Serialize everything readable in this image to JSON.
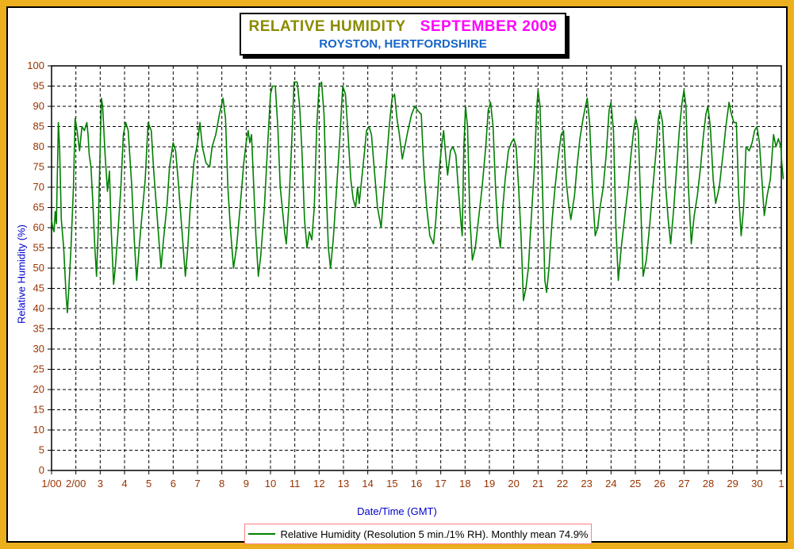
{
  "title": {
    "main": "RELATIVE HUMIDITY",
    "period": "SEPTEMBER 2009",
    "location": "ROYSTON, HERTFORDSHIRE"
  },
  "axes": {
    "x_label": "Date/Time (GMT)",
    "y_label": "Relative Humidity (%)"
  },
  "legend": {
    "text": "Relative Humidity (Resolution 5 min./1% RH). Monthly mean 74.9%"
  },
  "colors": {
    "frame_gold": "#ECAF1E",
    "line_green": "#008000",
    "tick_label_brown": "#993300",
    "axis_title_blue": "#0000CC",
    "title_olive": "#8B8B00",
    "title_magenta": "#FF00FF",
    "location_blue": "#1565C8",
    "legend_border_pink": "#FF8080",
    "grid_black": "#000000"
  },
  "chart_data": {
    "type": "line",
    "title": "RELATIVE HUMIDITY SEPTEMBER 2009 — ROYSTON, HERTFORDSHIRE",
    "xlabel": "Date/Time (GMT)",
    "ylabel": "Relative Humidity (%)",
    "ylim": [
      0,
      100
    ],
    "xlim": [
      1,
      31.1
    ],
    "y_ticks": [
      0,
      5,
      10,
      15,
      20,
      25,
      30,
      35,
      40,
      45,
      50,
      55,
      60,
      65,
      70,
      75,
      80,
      85,
      90,
      95,
      100
    ],
    "x_tick_positions": [
      1,
      2,
      3,
      4,
      5,
      6,
      7,
      8,
      9,
      10,
      11,
      12,
      13,
      14,
      15,
      16,
      17,
      18,
      19,
      20,
      21,
      22,
      23,
      24,
      25,
      26,
      27,
      28,
      29,
      30,
      31
    ],
    "x_tick_labels": [
      "1/00",
      "2/00",
      "3",
      "4",
      "5",
      "6",
      "7",
      "8",
      "9",
      "10",
      "11",
      "12",
      "13",
      "14",
      "15",
      "16",
      "17",
      "18",
      "19",
      "20",
      "21",
      "22",
      "23",
      "24",
      "25",
      "26",
      "27",
      "28",
      "29",
      "30",
      "1"
    ],
    "grid": true,
    "legend_position": "bottom",
    "monthly_mean": 74.9,
    "resolution": "5 min./1% RH",
    "series": [
      {
        "name": "Relative Humidity",
        "color": "#008000",
        "points": [
          [
            1.0,
            62
          ],
          [
            1.05,
            60
          ],
          [
            1.1,
            59
          ],
          [
            1.15,
            64
          ],
          [
            1.2,
            61
          ],
          [
            1.28,
            86
          ],
          [
            1.33,
            80
          ],
          [
            1.4,
            62
          ],
          [
            1.5,
            55
          ],
          [
            1.6,
            43
          ],
          [
            1.65,
            39
          ],
          [
            1.7,
            44
          ],
          [
            1.8,
            55
          ],
          [
            1.9,
            70
          ],
          [
            1.97,
            87
          ],
          [
            2.05,
            84
          ],
          [
            2.15,
            79
          ],
          [
            2.25,
            85
          ],
          [
            2.35,
            84
          ],
          [
            2.45,
            86
          ],
          [
            2.5,
            83
          ],
          [
            2.55,
            78
          ],
          [
            2.62,
            75
          ],
          [
            2.7,
            66
          ],
          [
            2.78,
            55
          ],
          [
            2.85,
            48
          ],
          [
            2.92,
            60
          ],
          [
            3.0,
            80
          ],
          [
            3.05,
            92
          ],
          [
            3.1,
            90
          ],
          [
            3.2,
            78
          ],
          [
            3.3,
            69
          ],
          [
            3.38,
            74
          ],
          [
            3.45,
            60
          ],
          [
            3.55,
            46
          ],
          [
            3.62,
            50
          ],
          [
            3.72,
            58
          ],
          [
            3.85,
            70
          ],
          [
            3.95,
            83
          ],
          [
            4.05,
            86
          ],
          [
            4.15,
            84
          ],
          [
            4.3,
            70
          ],
          [
            4.4,
            57
          ],
          [
            4.5,
            47
          ],
          [
            4.6,
            55
          ],
          [
            4.7,
            62
          ],
          [
            4.85,
            72
          ],
          [
            4.97,
            86
          ],
          [
            5.1,
            84
          ],
          [
            5.2,
            74
          ],
          [
            5.35,
            62
          ],
          [
            5.5,
            50
          ],
          [
            5.6,
            57
          ],
          [
            5.75,
            66
          ],
          [
            5.85,
            75
          ],
          [
            6.0,
            81
          ],
          [
            6.1,
            79
          ],
          [
            6.2,
            72
          ],
          [
            6.35,
            60
          ],
          [
            6.5,
            48
          ],
          [
            6.6,
            55
          ],
          [
            6.7,
            65
          ],
          [
            6.85,
            76
          ],
          [
            7.0,
            81
          ],
          [
            7.1,
            86
          ],
          [
            7.2,
            80
          ],
          [
            7.35,
            76
          ],
          [
            7.5,
            75
          ],
          [
            7.6,
            80
          ],
          [
            7.75,
            83
          ],
          [
            7.9,
            88
          ],
          [
            8.05,
            92
          ],
          [
            8.15,
            87
          ],
          [
            8.25,
            70
          ],
          [
            8.35,
            60
          ],
          [
            8.48,
            50
          ],
          [
            8.6,
            55
          ],
          [
            8.75,
            65
          ],
          [
            8.9,
            76
          ],
          [
            9.0,
            81
          ],
          [
            9.08,
            84
          ],
          [
            9.15,
            81
          ],
          [
            9.22,
            83
          ],
          [
            9.3,
            72
          ],
          [
            9.4,
            58
          ],
          [
            9.5,
            48
          ],
          [
            9.6,
            53
          ],
          [
            9.75,
            65
          ],
          [
            9.88,
            80
          ],
          [
            10.0,
            93
          ],
          [
            10.08,
            95
          ],
          [
            10.2,
            95
          ],
          [
            10.3,
            85
          ],
          [
            10.4,
            70
          ],
          [
            10.5,
            64
          ],
          [
            10.58,
            59
          ],
          [
            10.65,
            56
          ],
          [
            10.75,
            65
          ],
          [
            10.88,
            82
          ],
          [
            10.97,
            96
          ],
          [
            11.1,
            96
          ],
          [
            11.2,
            90
          ],
          [
            11.3,
            78
          ],
          [
            11.4,
            62
          ],
          [
            11.5,
            55
          ],
          [
            11.6,
            59
          ],
          [
            11.7,
            57
          ],
          [
            11.8,
            65
          ],
          [
            11.9,
            85
          ],
          [
            12.0,
            95
          ],
          [
            12.1,
            96
          ],
          [
            12.2,
            88
          ],
          [
            12.3,
            68
          ],
          [
            12.38,
            55
          ],
          [
            12.47,
            50
          ],
          [
            12.58,
            57
          ],
          [
            12.7,
            68
          ],
          [
            12.85,
            82
          ],
          [
            12.97,
            95
          ],
          [
            13.08,
            93
          ],
          [
            13.2,
            82
          ],
          [
            13.3,
            72
          ],
          [
            13.4,
            67
          ],
          [
            13.5,
            65
          ],
          [
            13.58,
            70
          ],
          [
            13.65,
            66
          ],
          [
            13.75,
            72
          ],
          [
            13.85,
            78
          ],
          [
            13.95,
            84
          ],
          [
            14.05,
            85
          ],
          [
            14.15,
            83
          ],
          [
            14.3,
            72
          ],
          [
            14.4,
            65
          ],
          [
            14.55,
            60
          ],
          [
            14.65,
            68
          ],
          [
            14.75,
            75
          ],
          [
            14.88,
            85
          ],
          [
            15.0,
            92
          ],
          [
            15.1,
            93
          ],
          [
            15.2,
            87
          ],
          [
            15.3,
            83
          ],
          [
            15.42,
            77
          ],
          [
            15.52,
            80
          ],
          [
            15.65,
            84
          ],
          [
            15.8,
            88
          ],
          [
            15.93,
            90
          ],
          [
            16.05,
            89
          ],
          [
            16.2,
            88
          ],
          [
            16.3,
            75
          ],
          [
            16.42,
            65
          ],
          [
            16.55,
            58
          ],
          [
            16.7,
            56
          ],
          [
            16.8,
            62
          ],
          [
            16.95,
            75
          ],
          [
            17.05,
            81
          ],
          [
            17.12,
            84
          ],
          [
            17.2,
            78
          ],
          [
            17.28,
            73
          ],
          [
            17.4,
            79
          ],
          [
            17.5,
            80
          ],
          [
            17.62,
            78
          ],
          [
            17.72,
            70
          ],
          [
            17.82,
            62
          ],
          [
            17.88,
            58
          ],
          [
            17.95,
            80
          ],
          [
            18.02,
            90
          ],
          [
            18.1,
            85
          ],
          [
            18.2,
            62
          ],
          [
            18.3,
            52
          ],
          [
            18.42,
            55
          ],
          [
            18.55,
            62
          ],
          [
            18.7,
            70
          ],
          [
            18.85,
            80
          ],
          [
            18.95,
            89
          ],
          [
            19.05,
            91
          ],
          [
            19.15,
            85
          ],
          [
            19.25,
            70
          ],
          [
            19.35,
            60
          ],
          [
            19.45,
            55
          ],
          [
            19.55,
            65
          ],
          [
            19.65,
            72
          ],
          [
            19.78,
            79
          ],
          [
            19.9,
            81
          ],
          [
            20.0,
            82
          ],
          [
            20.1,
            80
          ],
          [
            20.2,
            70
          ],
          [
            20.3,
            58
          ],
          [
            20.4,
            42
          ],
          [
            20.5,
            45
          ],
          [
            20.6,
            50
          ],
          [
            20.72,
            62
          ],
          [
            20.85,
            75
          ],
          [
            20.95,
            90
          ],
          [
            21.0,
            94
          ],
          [
            21.08,
            90
          ],
          [
            21.18,
            70
          ],
          [
            21.28,
            47
          ],
          [
            21.35,
            44
          ],
          [
            21.45,
            50
          ],
          [
            21.58,
            62
          ],
          [
            21.7,
            70
          ],
          [
            21.82,
            77
          ],
          [
            21.95,
            83
          ],
          [
            22.05,
            84
          ],
          [
            22.15,
            72
          ],
          [
            22.25,
            66
          ],
          [
            22.35,
            62
          ],
          [
            22.5,
            68
          ],
          [
            22.6,
            75
          ],
          [
            22.72,
            82
          ],
          [
            22.85,
            87
          ],
          [
            22.95,
            90
          ],
          [
            23.02,
            92
          ],
          [
            23.12,
            86
          ],
          [
            23.25,
            68
          ],
          [
            23.35,
            58
          ],
          [
            23.45,
            60
          ],
          [
            23.55,
            65
          ],
          [
            23.68,
            70
          ],
          [
            23.8,
            78
          ],
          [
            23.92,
            89
          ],
          [
            24.0,
            91
          ],
          [
            24.1,
            84
          ],
          [
            24.2,
            60
          ],
          [
            24.3,
            47
          ],
          [
            24.42,
            55
          ],
          [
            24.55,
            62
          ],
          [
            24.7,
            70
          ],
          [
            24.82,
            78
          ],
          [
            24.95,
            85
          ],
          [
            25.02,
            87
          ],
          [
            25.12,
            84
          ],
          [
            25.25,
            60
          ],
          [
            25.32,
            48
          ],
          [
            25.45,
            52
          ],
          [
            25.58,
            60
          ],
          [
            25.72,
            70
          ],
          [
            25.85,
            79
          ],
          [
            25.95,
            87
          ],
          [
            26.02,
            89
          ],
          [
            26.12,
            86
          ],
          [
            26.25,
            70
          ],
          [
            26.35,
            62
          ],
          [
            26.45,
            56
          ],
          [
            26.58,
            65
          ],
          [
            26.7,
            75
          ],
          [
            26.82,
            85
          ],
          [
            26.92,
            91
          ],
          [
            27.0,
            94
          ],
          [
            27.08,
            90
          ],
          [
            27.18,
            70
          ],
          [
            27.3,
            56
          ],
          [
            27.42,
            63
          ],
          [
            27.55,
            68
          ],
          [
            27.68,
            75
          ],
          [
            27.8,
            83
          ],
          [
            27.9,
            88
          ],
          [
            27.98,
            90
          ],
          [
            28.08,
            85
          ],
          [
            28.2,
            72
          ],
          [
            28.3,
            66
          ],
          [
            28.45,
            70
          ],
          [
            28.6,
            78
          ],
          [
            28.72,
            85
          ],
          [
            28.85,
            91
          ],
          [
            28.95,
            88
          ],
          [
            29.05,
            86
          ],
          [
            29.15,
            86
          ],
          [
            29.25,
            68
          ],
          [
            29.35,
            58
          ],
          [
            29.45,
            65
          ],
          [
            29.55,
            80
          ],
          [
            29.68,
            79
          ],
          [
            29.8,
            81
          ],
          [
            29.9,
            84
          ],
          [
            30.0,
            85
          ],
          [
            30.1,
            81
          ],
          [
            30.2,
            72
          ],
          [
            30.3,
            63
          ],
          [
            30.42,
            68
          ],
          [
            30.55,
            72
          ],
          [
            30.68,
            83
          ],
          [
            30.78,
            80
          ],
          [
            30.88,
            82
          ],
          [
            30.98,
            80
          ],
          [
            31.02,
            76
          ],
          [
            31.08,
            72
          ]
        ]
      }
    ]
  }
}
